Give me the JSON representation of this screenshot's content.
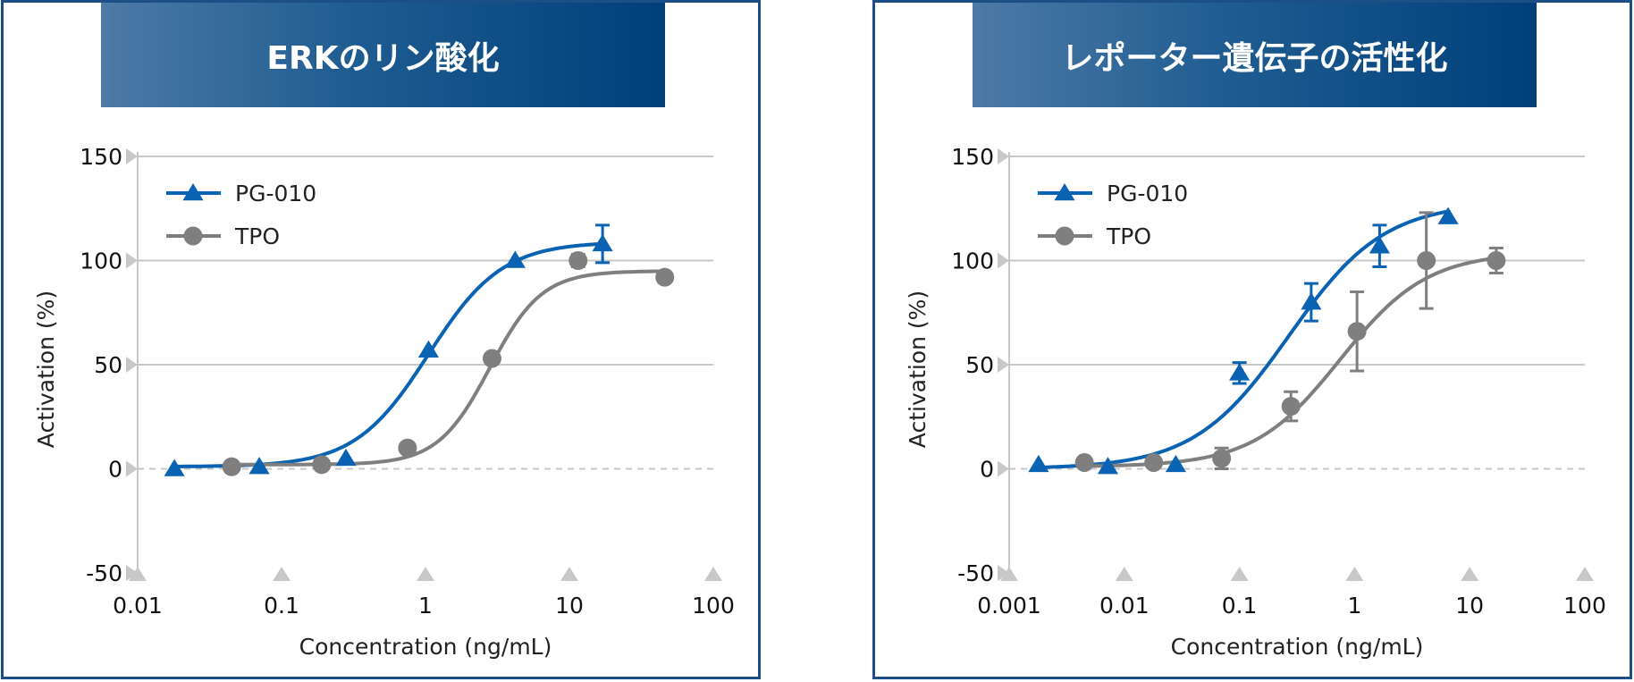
{
  "colors": {
    "pg010": "#0a62b3",
    "tpo": "#7f7f7f",
    "grid": "#c8c8c8",
    "zero": "#c8c8c8",
    "marker": "#c8c8c8"
  },
  "chart_data": [
    {
      "type": "scatter",
      "title": "ERKのリン酸化",
      "xlabel": "Concentration (ng/mL)",
      "ylabel": "Activation (%)",
      "xscale": "log",
      "xlim": [
        0.01,
        100
      ],
      "ylim": [
        -50,
        150
      ],
      "xticks": [
        0.01,
        0.1,
        1,
        10,
        100
      ],
      "xtick_labels": [
        "0.01",
        "0.1",
        "1",
        "10",
        "100"
      ],
      "yticks": [
        -50,
        0,
        50,
        100,
        150
      ],
      "ytick_labels": [
        "-50",
        "0",
        "50",
        "100",
        "150"
      ],
      "legend": "top-left",
      "series": [
        {
          "name": "PG-010",
          "marker": "triangle",
          "color": "#0a62b3",
          "x": [
            0.018,
            0.07,
            0.28,
            1.05,
            4.2,
            17
          ],
          "y": [
            0,
            1,
            5,
            57,
            100,
            108
          ],
          "err": [
            0,
            0,
            0,
            0,
            0,
            9
          ],
          "fit": {
            "bottom": 1,
            "top": 109,
            "ec50": 1.05,
            "hill": 1.7
          }
        },
        {
          "name": "TPO",
          "marker": "circle",
          "color": "#7f7f7f",
          "x": [
            0.045,
            0.19,
            0.75,
            2.9,
            11.5,
            46
          ],
          "y": [
            1,
            2,
            10,
            53,
            100,
            92
          ],
          "err": [
            0,
            0,
            0,
            0,
            3,
            0
          ],
          "fit": {
            "bottom": 2,
            "top": 95,
            "ec50": 2.8,
            "hill": 2.4
          }
        }
      ]
    },
    {
      "type": "scatter",
      "title": "レポーター遺伝子の活性化",
      "xlabel": "Concentration (ng/mL)",
      "ylabel": "Activation (%)",
      "xscale": "log",
      "xlim": [
        0.001,
        100
      ],
      "ylim": [
        -50,
        150
      ],
      "xticks": [
        0.001,
        0.01,
        0.1,
        1,
        10,
        100
      ],
      "xtick_labels": [
        "0.001",
        "0.01",
        "0.1",
        "1",
        "10",
        "100"
      ],
      "yticks": [
        -50,
        0,
        50,
        100,
        150
      ],
      "ytick_labels": [
        "-50",
        "0",
        "50",
        "100",
        "150"
      ],
      "legend": "top-left",
      "series": [
        {
          "name": "PG-010",
          "marker": "triangle",
          "color": "#0a62b3",
          "x": [
            0.0018,
            0.0072,
            0.028,
            0.1,
            0.42,
            1.65,
            6.5
          ],
          "y": [
            2,
            1,
            2,
            46,
            80,
            107,
            121
          ],
          "err": [
            0,
            0,
            0,
            5,
            9,
            10,
            0
          ],
          "fit": {
            "bottom": 0,
            "top": 128,
            "ec50": 0.27,
            "hill": 1.05
          }
        },
        {
          "name": "TPO",
          "marker": "circle",
          "color": "#7f7f7f",
          "x": [
            0.0045,
            0.018,
            0.07,
            0.28,
            1.05,
            4.2,
            17
          ],
          "y": [
            3,
            3,
            5,
            30,
            66,
            100,
            100
          ],
          "err": [
            0,
            0,
            5,
            7,
            19,
            23,
            6
          ],
          "fit": {
            "bottom": 1,
            "top": 104,
            "ec50": 0.75,
            "hill": 1.15
          }
        }
      ]
    }
  ]
}
